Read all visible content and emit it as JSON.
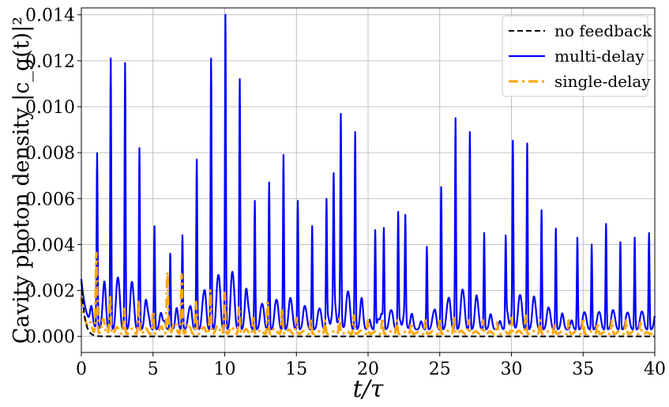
{
  "chart_data": {
    "type": "line",
    "xlabel": "t/τ",
    "ylabel": "Cavity photon density |c_g(t)|²",
    "xlim": [
      0,
      40
    ],
    "ylim": [
      -0.0007,
      0.0143
    ],
    "xticks": [
      0,
      5,
      10,
      15,
      20,
      25,
      30,
      35,
      40
    ],
    "yticks": [
      0.0,
      0.002,
      0.004,
      0.006,
      0.008,
      0.01,
      0.012,
      0.014
    ],
    "xtick_labels": [
      "0",
      "5",
      "10",
      "15",
      "20",
      "25",
      "30",
      "35",
      "40"
    ],
    "ytick_labels": [
      "0.000",
      "0.002",
      "0.004",
      "0.006",
      "0.008",
      "0.010",
      "0.012",
      "0.014"
    ],
    "grid": true,
    "legend_position": "top-right",
    "series": [
      {
        "name": "no feedback",
        "color": "#000000",
        "style": "dashed",
        "decay_start": 0.0024,
        "decay_rate": 4.5
      },
      {
        "name": "multi-delay",
        "color": "#0000ff",
        "style": "solid",
        "peaks": [
          [
            1.1,
            0.0076
          ],
          [
            2.05,
            0.0118
          ],
          [
            3.05,
            0.0116
          ],
          [
            4.05,
            0.0079
          ],
          [
            5.1,
            0.0045
          ],
          [
            6.2,
            0.0033
          ],
          [
            7.05,
            0.0041
          ],
          [
            8.05,
            0.0074
          ],
          [
            9.05,
            0.0118
          ],
          [
            10.05,
            0.0137
          ],
          [
            11.05,
            0.0109
          ],
          [
            12.1,
            0.0056
          ],
          [
            13.1,
            0.0064
          ],
          [
            14.1,
            0.0076
          ],
          [
            15.1,
            0.0056
          ],
          [
            16.1,
            0.0045
          ],
          [
            17.1,
            0.0054
          ],
          [
            17.6,
            0.0056
          ],
          [
            18.1,
            0.0086
          ],
          [
            19.1,
            0.0086
          ],
          [
            20.5,
            0.0043
          ],
          [
            21.1,
            0.0042
          ],
          [
            22.1,
            0.0049
          ],
          [
            22.6,
            0.0043
          ],
          [
            24.1,
            0.0036
          ],
          [
            25.1,
            0.0062
          ],
          [
            26.1,
            0.0092
          ],
          [
            27.1,
            0.0086
          ],
          [
            28.1,
            0.0042
          ],
          [
            29.6,
            0.0037
          ],
          [
            30.1,
            0.0077
          ],
          [
            31.1,
            0.0081
          ],
          [
            32.1,
            0.0052
          ],
          [
            33.1,
            0.0044
          ],
          [
            34.6,
            0.004
          ],
          [
            35.6,
            0.0037
          ],
          [
            36.6,
            0.0046
          ],
          [
            37.6,
            0.0038
          ],
          [
            38.6,
            0.004
          ],
          [
            39.6,
            0.0042
          ]
        ]
      },
      {
        "name": "single-delay",
        "color": "#ffa500",
        "style": "dashdot",
        "peaks": [
          [
            1.05,
            0.0035
          ],
          [
            2.0,
            0.0017
          ],
          [
            3.0,
            0.0011
          ],
          [
            4.0,
            0.0015
          ],
          [
            5.0,
            0.001
          ],
          [
            6.0,
            0.0027
          ],
          [
            7.0,
            0.0026
          ],
          [
            8.0,
            0.0014
          ],
          [
            9.0,
            0.0019
          ],
          [
            10.0,
            0.0018
          ],
          [
            11.0,
            0.0012
          ],
          [
            12.0,
            0.0008
          ],
          [
            13.0,
            0.0014
          ],
          [
            14.0,
            0.0011
          ],
          [
            15.0,
            0.0007
          ],
          [
            16.0,
            0.0007
          ],
          [
            17.0,
            0.0006
          ],
          [
            18.0,
            0.0007
          ],
          [
            19.0,
            0.0008
          ],
          [
            20.0,
            0.0006
          ],
          [
            21.0,
            0.0007
          ],
          [
            22.0,
            0.0006
          ],
          [
            23.0,
            0.0005
          ],
          [
            24.0,
            0.0006
          ],
          [
            25.0,
            0.0007
          ],
          [
            26.0,
            0.0008
          ],
          [
            27.0,
            0.0006
          ],
          [
            28.0,
            0.0006
          ],
          [
            29.0,
            0.0005
          ],
          [
            30.0,
            0.0007
          ],
          [
            31.0,
            0.0008
          ],
          [
            32.0,
            0.0006
          ],
          [
            33.0,
            0.0005
          ],
          [
            34.0,
            0.0006
          ],
          [
            35.0,
            0.0007
          ],
          [
            36.0,
            0.0005
          ],
          [
            37.0,
            0.0006
          ],
          [
            38.0,
            0.0006
          ],
          [
            39.0,
            0.0005
          ]
        ]
      }
    ]
  }
}
